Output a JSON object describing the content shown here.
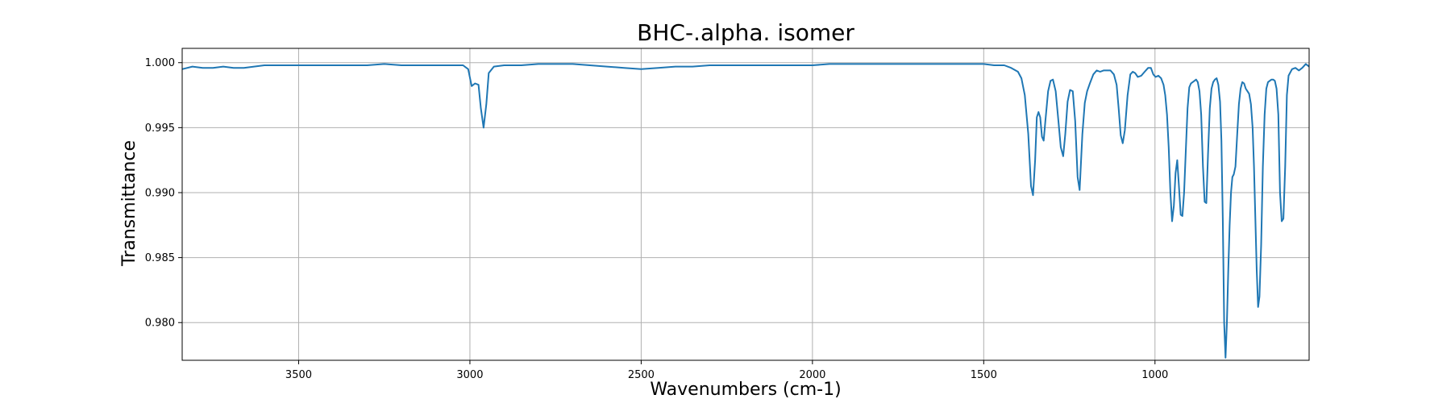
{
  "chart_data": {
    "type": "line",
    "title": "BHC-.alpha. isomer",
    "xlabel": "Wavenumbers (cm-1)",
    "ylabel": "Transmittance",
    "xlim": [
      3840,
      550
    ],
    "ylim": [
      0.9771,
      1.0011
    ],
    "x_reversed": true,
    "grid": true,
    "line_color": "#1f77b4",
    "x_ticks": [
      3500,
      3000,
      2500,
      2000,
      1500,
      1000
    ],
    "x_tick_labels": [
      "3500",
      "3000",
      "2500",
      "2000",
      "1500",
      "1000"
    ],
    "y_ticks": [
      0.98,
      0.985,
      0.99,
      0.995,
      1.0
    ],
    "y_tick_labels": [
      "0.980",
      "0.985",
      "0.990",
      "0.995",
      "1.000"
    ],
    "series": [
      {
        "x": [
          3840,
          3810,
          3780,
          3750,
          3720,
          3690,
          3660,
          3630,
          3600,
          3570,
          3540,
          3500,
          3450,
          3400,
          3350,
          3300,
          3250,
          3200,
          3150,
          3100,
          3050,
          3020,
          3005,
          2995,
          2985,
          2975,
          2968,
          2960,
          2952,
          2945,
          2930,
          2900,
          2850,
          2800,
          2750,
          2700,
          2650,
          2600,
          2550,
          2500,
          2450,
          2400,
          2350,
          2300,
          2250,
          2200,
          2150,
          2100,
          2050,
          2000,
          1950,
          1900,
          1850,
          1800,
          1750,
          1700,
          1650,
          1600,
          1550,
          1500,
          1470,
          1440,
          1420,
          1400,
          1390,
          1380,
          1370,
          1362,
          1356,
          1350,
          1345,
          1340,
          1335,
          1330,
          1325,
          1320,
          1312,
          1305,
          1298,
          1290,
          1282,
          1275,
          1268,
          1262,
          1255,
          1248,
          1240,
          1233,
          1226,
          1220,
          1212,
          1205,
          1198,
          1190,
          1180,
          1170,
          1160,
          1150,
          1140,
          1130,
          1120,
          1112,
          1106,
          1100,
          1094,
          1088,
          1080,
          1072,
          1065,
          1058,
          1050,
          1040,
          1030,
          1020,
          1012,
          1005,
          998,
          990,
          982,
          975,
          970,
          965,
          960,
          955,
          950,
          945,
          940,
          935,
          930,
          925,
          920,
          915,
          910,
          905,
          900,
          895,
          890,
          885,
          880,
          875,
          870,
          865,
          860,
          855,
          850,
          845,
          840,
          835,
          830,
          825,
          820,
          815,
          810,
          806,
          802,
          798,
          794,
          790,
          786,
          782,
          778,
          774,
          770,
          765,
          760,
          755,
          750,
          745,
          740,
          735,
          730,
          725,
          720,
          715,
          711,
          707,
          703,
          699,
          695,
          690,
          685,
          680,
          675,
          670,
          665,
          660,
          655,
          650,
          645,
          640,
          635,
          630,
          625,
          620,
          615,
          610,
          600,
          590,
          580,
          570,
          560,
          550
        ],
        "y": [
          0.9995,
          0.9997,
          0.9996,
          0.9996,
          0.9997,
          0.9996,
          0.9996,
          0.9997,
          0.9998,
          0.9998,
          0.9998,
          0.9998,
          0.9998,
          0.9998,
          0.9998,
          0.9998,
          0.9999,
          0.9998,
          0.9998,
          0.9998,
          0.9998,
          0.9998,
          0.9995,
          0.9982,
          0.9984,
          0.9983,
          0.9965,
          0.995,
          0.9968,
          0.9992,
          0.9997,
          0.9998,
          0.9998,
          0.9999,
          0.9999,
          0.9999,
          0.9998,
          0.9997,
          0.9996,
          0.9995,
          0.9996,
          0.9997,
          0.9997,
          0.9998,
          0.9998,
          0.9998,
          0.9998,
          0.9998,
          0.9998,
          0.9998,
          0.9999,
          0.9999,
          0.9999,
          0.9999,
          0.9999,
          0.9999,
          0.9999,
          0.9999,
          0.9999,
          0.9999,
          0.9998,
          0.9998,
          0.9996,
          0.9993,
          0.9988,
          0.9975,
          0.9945,
          0.9905,
          0.9898,
          0.9925,
          0.9958,
          0.9962,
          0.9958,
          0.9943,
          0.994,
          0.9955,
          0.9978,
          0.9986,
          0.9987,
          0.9978,
          0.9955,
          0.9935,
          0.9928,
          0.9945,
          0.997,
          0.9979,
          0.9978,
          0.9955,
          0.9912,
          0.9902,
          0.9945,
          0.9969,
          0.9978,
          0.9984,
          0.9991,
          0.9994,
          0.9993,
          0.9994,
          0.9994,
          0.9994,
          0.9991,
          0.9983,
          0.9965,
          0.9944,
          0.9938,
          0.9948,
          0.9975,
          0.9991,
          0.9993,
          0.9992,
          0.9989,
          0.999,
          0.9993,
          0.9996,
          0.9996,
          0.9991,
          0.9989,
          0.999,
          0.9988,
          0.9983,
          0.9975,
          0.996,
          0.9935,
          0.99,
          0.9878,
          0.989,
          0.9915,
          0.9925,
          0.9905,
          0.9883,
          0.9882,
          0.99,
          0.9932,
          0.9965,
          0.9981,
          0.9984,
          0.9985,
          0.9986,
          0.9987,
          0.9985,
          0.9978,
          0.996,
          0.992,
          0.9893,
          0.9892,
          0.993,
          0.9965,
          0.998,
          0.9985,
          0.9987,
          0.9988,
          0.9983,
          0.997,
          0.994,
          0.988,
          0.98,
          0.9773,
          0.98,
          0.984,
          0.9875,
          0.99,
          0.9912,
          0.9914,
          0.992,
          0.9945,
          0.9968,
          0.998,
          0.9985,
          0.9984,
          0.998,
          0.9978,
          0.9976,
          0.9968,
          0.995,
          0.992,
          0.988,
          0.984,
          0.9812,
          0.982,
          0.986,
          0.992,
          0.996,
          0.998,
          0.9985,
          0.9986,
          0.9987,
          0.9987,
          0.9986,
          0.998,
          0.996,
          0.99,
          0.9878,
          0.988,
          0.992,
          0.9975,
          0.999,
          0.9995,
          0.9996,
          0.9994,
          0.9996,
          0.9999,
          0.9997
        ]
      }
    ]
  }
}
